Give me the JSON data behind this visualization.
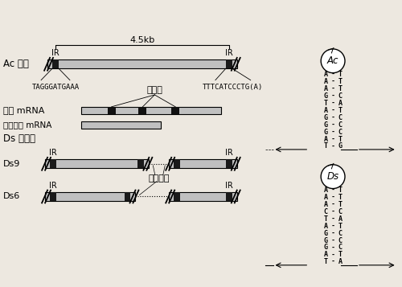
{
  "bg_color": "#ede8e0",
  "ac_label": "Ac 因子",
  "ds_label": "Ds 因子：",
  "ds9_label": "Ds9",
  "ds6_label": "Ds6",
  "scale_text": "4.5kb",
  "ir_label": "IR",
  "left_seq_ac": "TAGGGATGAAA",
  "right_seq_ac": "TTTCATCCCTG(A)",
  "intron_label": "内含子",
  "mrna1_label": "初级 mRNA",
  "mrna2_label": "加工后的 mRNA",
  "missing_label": "缺失部分",
  "ac_pairs": [
    [
      "A",
      "T"
    ],
    [
      "A",
      "T"
    ],
    [
      "A",
      "T"
    ],
    [
      "G",
      "C"
    ],
    [
      "T",
      "A"
    ],
    [
      "A",
      "T"
    ],
    [
      "G",
      "C"
    ],
    [
      "G",
      "C"
    ],
    [
      "G",
      "C"
    ],
    [
      "A",
      "T"
    ],
    [
      "T",
      "G"
    ]
  ],
  "ds_pairs": [
    [
      "A",
      "T"
    ],
    [
      "A",
      "T"
    ],
    [
      "A",
      "T"
    ],
    [
      "C",
      "C"
    ],
    [
      "T",
      "A"
    ],
    [
      "A",
      "T"
    ],
    [
      "G",
      "C"
    ],
    [
      "G",
      "C"
    ],
    [
      "G",
      "C"
    ],
    [
      "A",
      "T"
    ],
    [
      "T",
      "A"
    ]
  ],
  "ac_loop_label": "Ac",
  "ds_loop_label": "Ds"
}
